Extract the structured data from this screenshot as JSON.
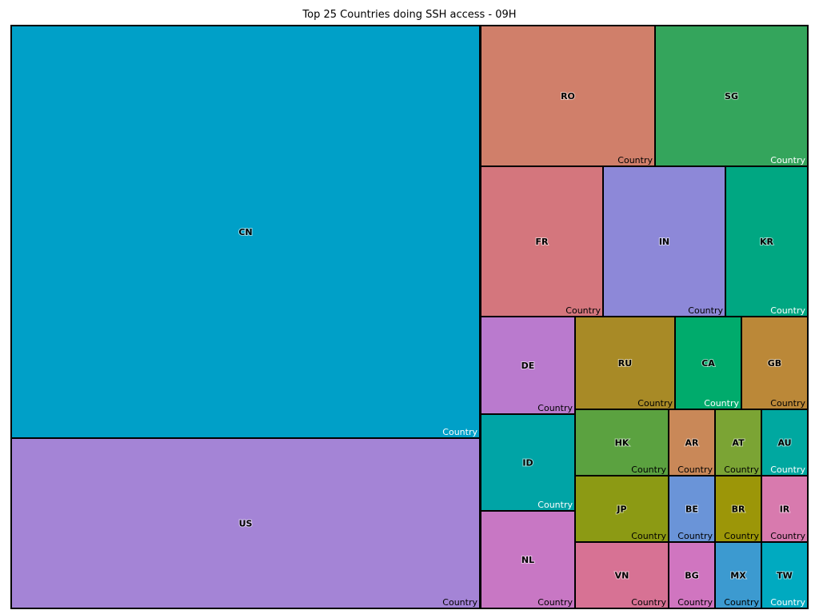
{
  "chart_data": {
    "type": "treemap",
    "title": "Top 25 Countries doing SSH access - 09H",
    "group_label": "Country",
    "tiles": [
      {
        "name": "CN",
        "value": 427600,
        "color": "#00a0c8",
        "group_label_color": "#ffffff"
      },
      {
        "name": "US",
        "value": 155400,
        "color": "#a484d6",
        "group_label_color": "#000000"
      },
      {
        "name": "RO",
        "value": 38200,
        "color": "#d07f6a",
        "group_label_color": "#000000"
      },
      {
        "name": "SG",
        "value": 33400,
        "color": "#34a55c",
        "group_label_color": "#ffffff"
      },
      {
        "name": "FR",
        "value": 28800,
        "color": "#d4767d",
        "group_label_color": "#000000"
      },
      {
        "name": "IN",
        "value": 28500,
        "color": "#8d88d8",
        "group_label_color": "#000000"
      },
      {
        "name": "KR",
        "value": 18800,
        "color": "#00a782",
        "group_label_color": "#ffffff"
      },
      {
        "name": "DE",
        "value": 14300,
        "color": "#ba7ace",
        "group_label_color": "#000000"
      },
      {
        "name": "ID",
        "value": 14200,
        "color": "#00a4a6",
        "group_label_color": "#ffffff"
      },
      {
        "name": "NL",
        "value": 14200,
        "color": "#c877c4",
        "group_label_color": "#000000"
      },
      {
        "name": "RU",
        "value": 14300,
        "color": "#a88a26",
        "group_label_color": "#000000"
      },
      {
        "name": "CA",
        "value": 9500,
        "color": "#00ab6c",
        "group_label_color": "#ffffff"
      },
      {
        "name": "GB",
        "value": 9500,
        "color": "#bb8838",
        "group_label_color": "#000000"
      },
      {
        "name": "HK",
        "value": 9800,
        "color": "#5ba240",
        "group_label_color": "#000000"
      },
      {
        "name": "AR",
        "value": 4800,
        "color": "#c98858",
        "group_label_color": "#000000"
      },
      {
        "name": "AT",
        "value": 4800,
        "color": "#7ba434",
        "group_label_color": "#000000"
      },
      {
        "name": "AU",
        "value": 4800,
        "color": "#00a8a0",
        "group_label_color": "#ffffff"
      },
      {
        "name": "JP",
        "value": 9800,
        "color": "#8c9a14",
        "group_label_color": "#000000"
      },
      {
        "name": "BE",
        "value": 4800,
        "color": "#6a94d8",
        "group_label_color": "#000000"
      },
      {
        "name": "BR",
        "value": 4800,
        "color": "#9c9608",
        "group_label_color": "#000000"
      },
      {
        "name": "IR",
        "value": 4800,
        "color": "#d87aae",
        "group_label_color": "#000000"
      },
      {
        "name": "VN",
        "value": 9800,
        "color": "#d77294",
        "group_label_color": "#000000"
      },
      {
        "name": "BG",
        "value": 4800,
        "color": "#d075c0",
        "group_label_color": "#000000"
      },
      {
        "name": "MX",
        "value": 4800,
        "color": "#3c9ad0",
        "group_label_color": "#000000"
      },
      {
        "name": "TW",
        "value": 4800,
        "color": "#00aac0",
        "group_label_color": "#ffffff"
      }
    ]
  }
}
